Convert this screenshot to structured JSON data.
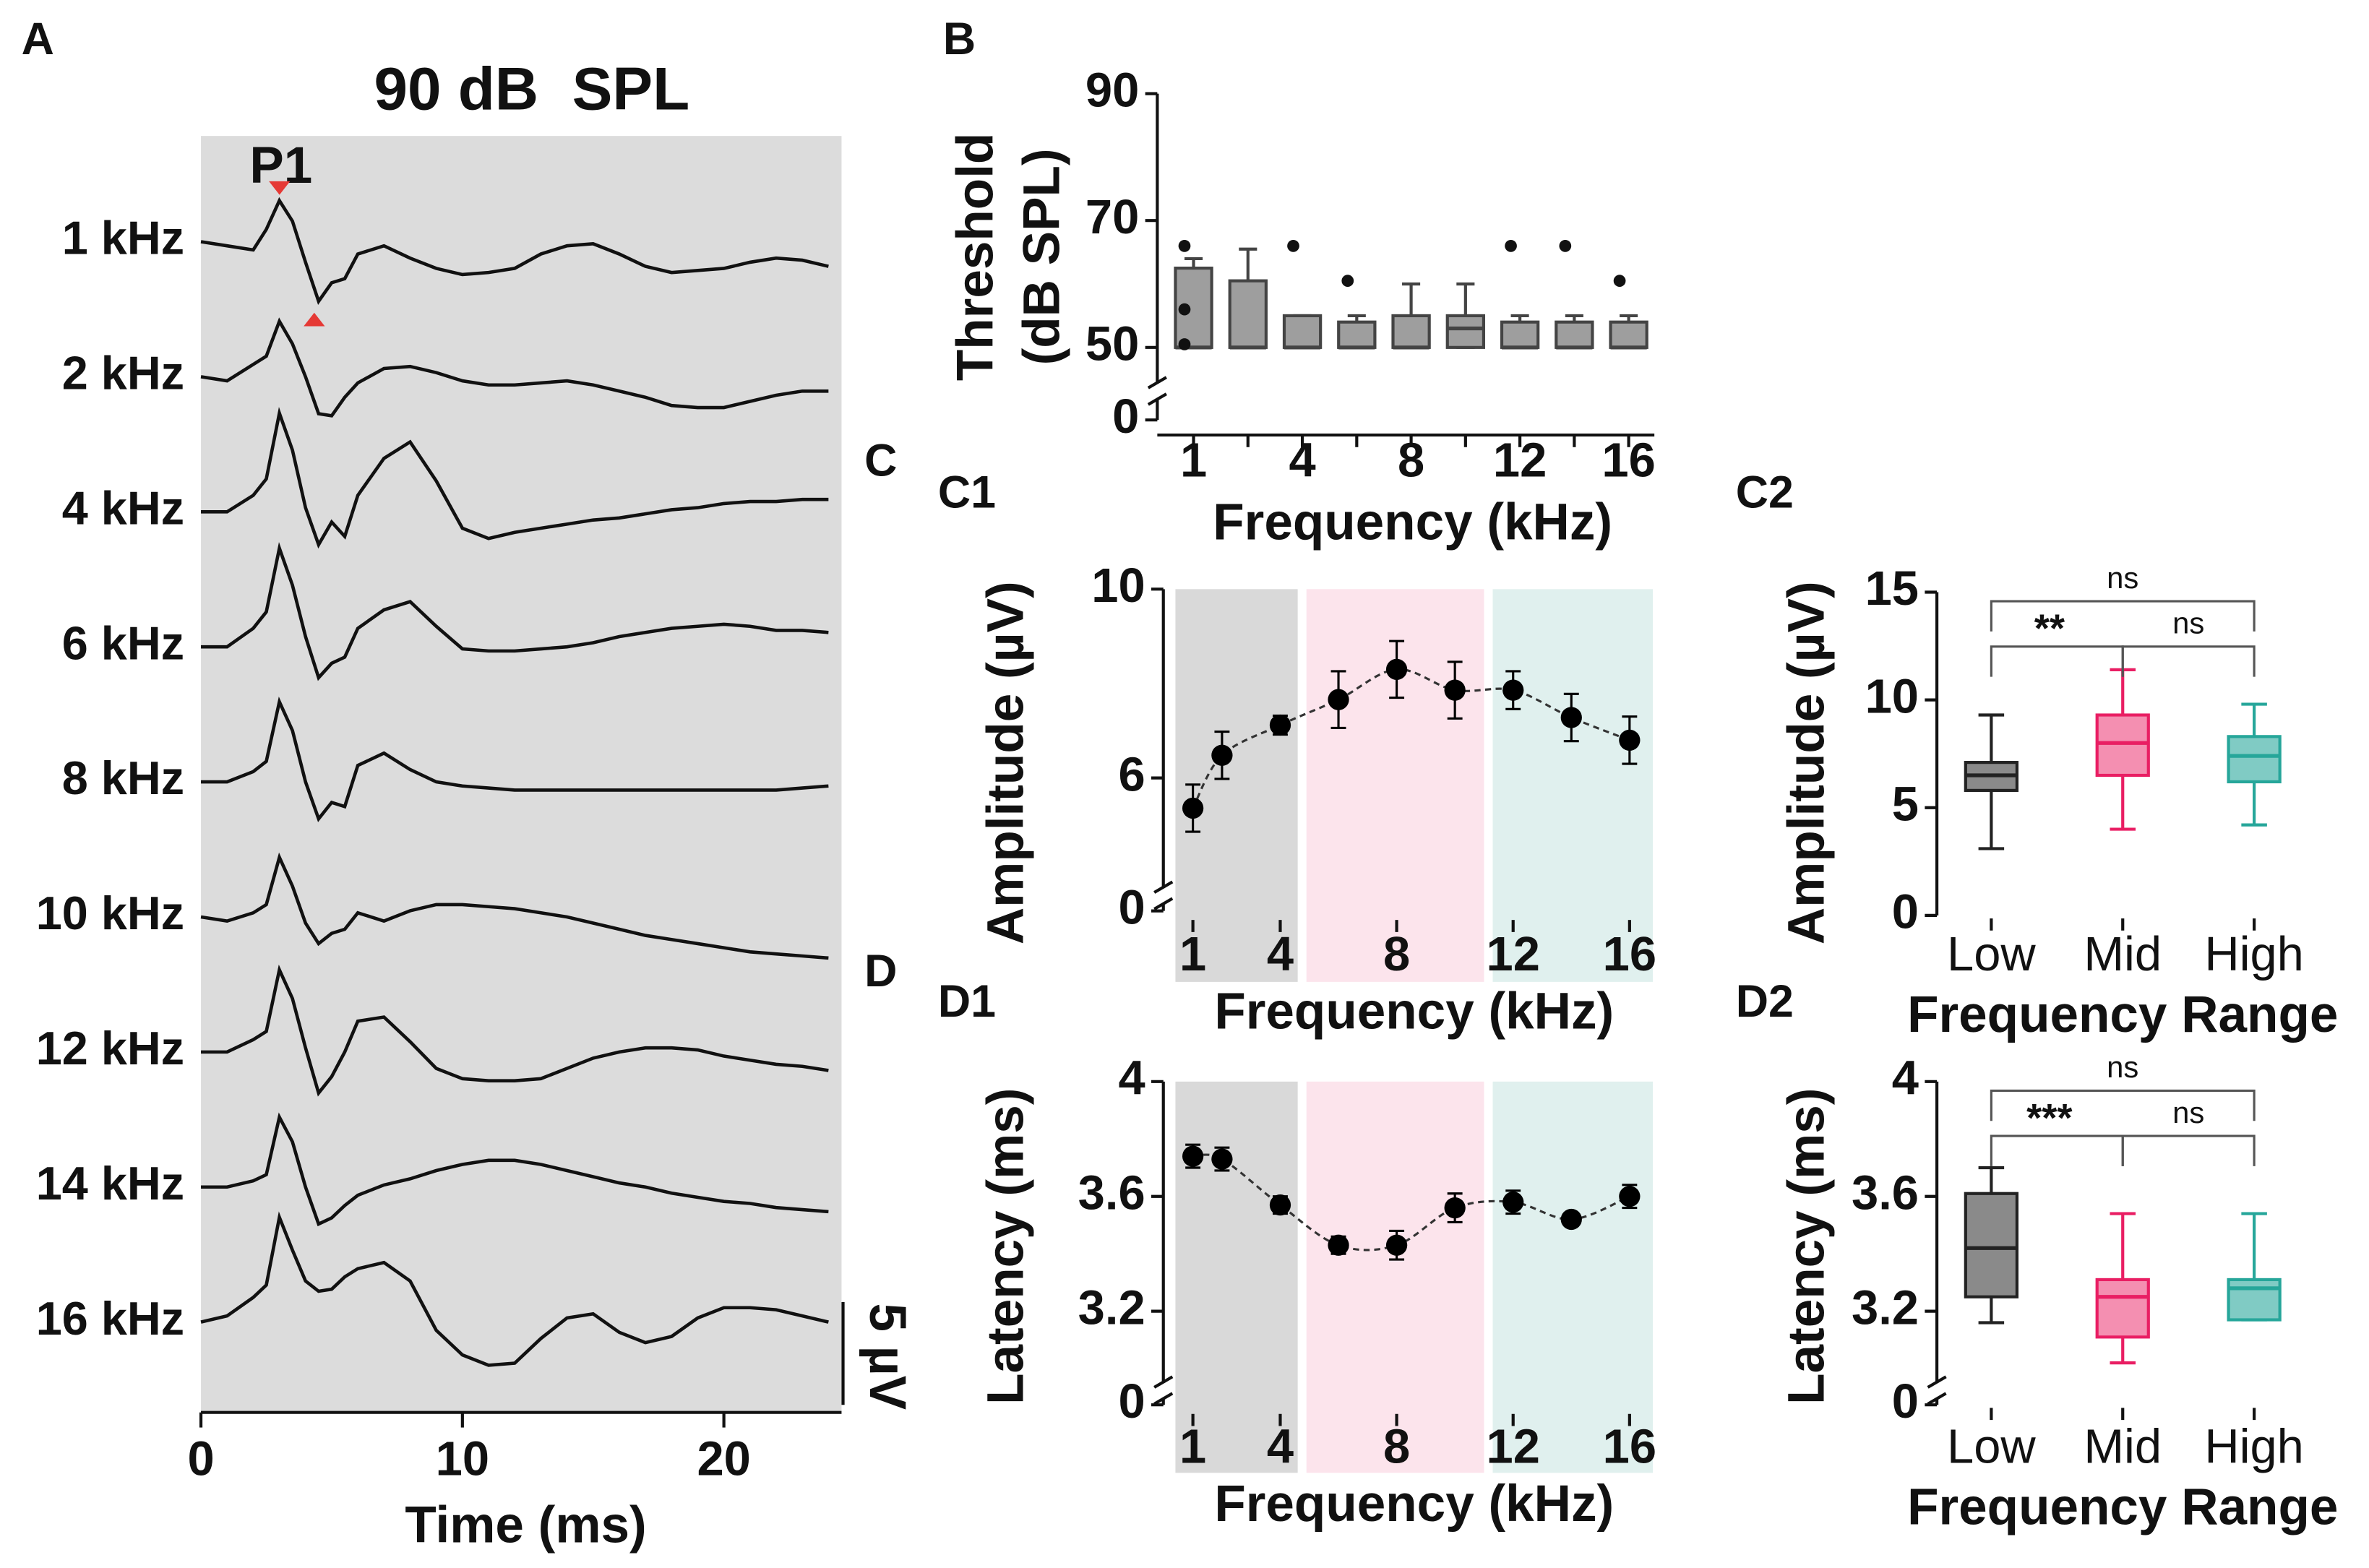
{
  "panel_labels": [
    "A",
    "B",
    "C",
    "C1",
    "C2",
    "D",
    "D1",
    "D2"
  ],
  "chart_data": [
    {
      "type": "line",
      "title": "90 dB  SPL",
      "xlabel": "Time (ms)",
      "xlim": [
        0,
        24.5
      ],
      "xticks": [
        0,
        10,
        20
      ],
      "x": [
        0,
        1,
        2,
        2.5,
        3,
        3.5,
        4,
        4.5,
        5,
        5.5,
        6,
        7,
        8,
        9,
        10,
        11,
        12,
        13,
        14,
        15,
        16,
        17,
        18,
        19,
        20,
        21,
        22,
        23,
        24
      ],
      "color": "#111111",
      "background": "#dcdcdc",
      "marker_color": "#e53935",
      "annotations": [
        "P1",
        "5 µV"
      ],
      "series": [
        {
          "name": "1 kHz",
          "values": [
            0,
            -0.2,
            -0.4,
            0.6,
            2.0,
            1.0,
            -1.0,
            -2.9,
            -2.0,
            -1.8,
            -0.6,
            -0.2,
            -0.8,
            -1.3,
            -1.6,
            -1.5,
            -1.3,
            -0.6,
            -0.2,
            -0.1,
            -0.6,
            -1.2,
            -1.5,
            -1.4,
            -1.3,
            -1.0,
            -0.8,
            -0.9,
            -1.2
          ]
        },
        {
          "name": "2 kHz",
          "values": [
            0,
            -0.2,
            0.6,
            1.0,
            2.7,
            1.6,
            0,
            -1.8,
            -1.9,
            -1.0,
            -0.3,
            0.4,
            0.5,
            0.2,
            -0.2,
            -0.4,
            -0.4,
            -0.3,
            -0.2,
            -0.4,
            -0.7,
            -1.0,
            -1.4,
            -1.5,
            -1.5,
            -1.2,
            -0.9,
            -0.7,
            -0.7
          ]
        },
        {
          "name": "4 kHz",
          "values": [
            0,
            0,
            0.8,
            1.6,
            4.8,
            3.0,
            0.2,
            -1.6,
            -0.5,
            -1.2,
            0.8,
            2.6,
            3.4,
            1.5,
            -0.8,
            -1.3,
            -1.0,
            -0.8,
            -0.6,
            -0.4,
            -0.3,
            -0.1,
            0.1,
            0.2,
            0.4,
            0.5,
            0.5,
            0.6,
            0.6
          ]
        },
        {
          "name": "6 kHz",
          "values": [
            0,
            0,
            0.9,
            1.7,
            4.8,
            3.0,
            0.5,
            -1.5,
            -0.8,
            -0.5,
            0.9,
            1.8,
            2.2,
            1.0,
            -0.1,
            -0.2,
            -0.2,
            -0.1,
            0,
            0.2,
            0.5,
            0.7,
            0.9,
            1.0,
            1.1,
            1.0,
            0.8,
            0.8,
            0.7
          ]
        },
        {
          "name": "8 kHz",
          "values": [
            0,
            0,
            0.5,
            1.0,
            3.9,
            2.5,
            0,
            -1.8,
            -1.0,
            -1.2,
            0.8,
            1.4,
            0.6,
            0,
            -0.2,
            -0.3,
            -0.4,
            -0.4,
            -0.4,
            -0.4,
            -0.4,
            -0.4,
            -0.4,
            -0.4,
            -0.4,
            -0.4,
            -0.4,
            -0.3,
            -0.2
          ]
        },
        {
          "name": "10 kHz",
          "values": [
            0,
            -0.2,
            0.2,
            0.6,
            2.9,
            1.5,
            -0.3,
            -1.3,
            -0.8,
            -0.6,
            0.2,
            -0.2,
            0.3,
            0.6,
            0.6,
            0.5,
            0.4,
            0.2,
            0,
            -0.3,
            -0.6,
            -0.9,
            -1.1,
            -1.3,
            -1.5,
            -1.7,
            -1.8,
            -1.9,
            -2.0
          ]
        },
        {
          "name": "12 kHz",
          "values": [
            0,
            0,
            0.6,
            1.0,
            4.0,
            2.6,
            0.2,
            -2.0,
            -1.2,
            0,
            1.5,
            1.7,
            0.5,
            -0.8,
            -1.3,
            -1.4,
            -1.4,
            -1.3,
            -0.8,
            -0.3,
            0,
            0.2,
            0.2,
            0.1,
            -0.2,
            -0.4,
            -0.6,
            -0.7,
            -0.9
          ]
        },
        {
          "name": "14 kHz",
          "values": [
            0,
            0,
            0.3,
            0.6,
            3.4,
            2.2,
            0,
            -1.8,
            -1.5,
            -0.9,
            -0.4,
            0.1,
            0.4,
            0.8,
            1.1,
            1.3,
            1.3,
            1.1,
            0.8,
            0.5,
            0.2,
            0,
            -0.3,
            -0.5,
            -0.7,
            -0.8,
            -1.0,
            -1.1,
            -1.2
          ]
        },
        {
          "name": "16 kHz",
          "values": [
            0,
            0.3,
            1.2,
            1.8,
            5.1,
            3.5,
            2.0,
            1.5,
            1.6,
            2.2,
            2.6,
            2.9,
            2.0,
            -0.4,
            -1.6,
            -2.1,
            -2.0,
            -0.8,
            0.2,
            0.4,
            -0.5,
            -1.0,
            -0.7,
            0.2,
            0.7,
            0.7,
            0.6,
            0.3,
            0
          ]
        }
      ]
    },
    {
      "type": "box",
      "ylabel": [
        "Threshold",
        "(dB SPL)"
      ],
      "xlabel": "Frequency (kHz)",
      "categories": [
        "1",
        null,
        "4",
        null,
        "8",
        null,
        "12",
        null,
        "16"
      ],
      "ylim": [
        0,
        90
      ],
      "yticks": [
        0,
        50,
        70,
        90
      ],
      "axis_break": [
        0,
        50
      ],
      "whislo": [
        50,
        50,
        50,
        50,
        50,
        50,
        50,
        50,
        50
      ],
      "q1": [
        50,
        50,
        50,
        50,
        50,
        50,
        50,
        50,
        50
      ],
      "median": [
        50,
        50,
        50,
        50,
        50,
        53,
        50,
        50,
        50
      ],
      "q3": [
        62.5,
        60.5,
        55,
        54,
        55,
        55,
        54,
        54,
        54
      ],
      "whishi": [
        64,
        65.5,
        55,
        55,
        60,
        60,
        55,
        55,
        55
      ],
      "outliers": [
        [
          66,
          56,
          50.5
        ],
        [],
        [
          66
        ],
        [
          60.5
        ],
        [],
        [],
        [
          66
        ],
        [
          66
        ],
        [
          60.5
        ]
      ],
      "fill": "#9e9e9e",
      "edge": "#444444"
    },
    {
      "type": "errorline",
      "ylabel": "Amplitude (µV)",
      "xlabel": "Frequency (kHz)",
      "x": [
        1,
        2,
        4,
        6,
        8,
        10,
        12,
        14,
        16
      ],
      "values": [
        5.36,
        6.48,
        7.12,
        7.66,
        8.3,
        7.86,
        7.86,
        7.28,
        6.8
      ],
      "errors": [
        0.5,
        0.5,
        0.2,
        0.6,
        0.6,
        0.6,
        0.4,
        0.5,
        0.5
      ],
      "xlim": [
        0.4,
        16.8
      ],
      "xticks": [
        1,
        4,
        8,
        12,
        16
      ],
      "ylim": [
        0,
        10
      ],
      "yticks": [
        0,
        6,
        10
      ],
      "axis_break": [
        0,
        4
      ],
      "bands": [
        {
          "range": [
            0.4,
            4.6
          ],
          "color": "#d9d9d9"
        },
        {
          "range": [
            4.9,
            11.0
          ],
          "color": "#fce4ec"
        },
        {
          "range": [
            11.3,
            16.8
          ],
          "color": "#e0f0ee"
        }
      ],
      "color": "#000000"
    },
    {
      "type": "box",
      "ylabel": "Amplitude (µV)",
      "xlabel": "Frequency Range",
      "categories": [
        "Low",
        "Mid",
        "High"
      ],
      "ylim": [
        0,
        15
      ],
      "yticks": [
        0,
        5,
        10,
        15
      ],
      "whislo": [
        3.1,
        4.0,
        4.2
      ],
      "q1": [
        5.8,
        6.5,
        6.2
      ],
      "median": [
        6.5,
        8.0,
        7.4
      ],
      "q3": [
        7.1,
        9.3,
        8.3
      ],
      "whishi": [
        9.3,
        11.4,
        9.8
      ],
      "outliers": [
        [],
        [],
        []
      ],
      "fill": [
        "#8a8a8a",
        "#f48fb1",
        "#80cbc4"
      ],
      "edge": [
        "#222222",
        "#e91e63",
        "#26a69a"
      ],
      "comparisons": [
        {
          "pair": [
            0,
            2
          ],
          "label": "ns"
        },
        {
          "pair": [
            0,
            1
          ],
          "label": "**"
        },
        {
          "pair": [
            1,
            2
          ],
          "label": "ns"
        }
      ]
    },
    {
      "type": "errorline",
      "ylabel": "Latency (ms)",
      "xlabel": "Frequency (kHz)",
      "x": [
        1,
        2,
        4,
        6,
        8,
        10,
        12,
        14,
        16
      ],
      "values": [
        3.74,
        3.73,
        3.57,
        3.43,
        3.43,
        3.56,
        3.58,
        3.52,
        3.6
      ],
      "errors": [
        0.04,
        0.04,
        0.03,
        0.03,
        0.05,
        0.05,
        0.04,
        0.02,
        0.04
      ],
      "xlim": [
        0.4,
        16.8
      ],
      "xticks": [
        1,
        4,
        8,
        12,
        16
      ],
      "ylim": [
        0,
        4
      ],
      "yticks": [
        0,
        3.2,
        3.6,
        4
      ],
      "axis_break": [
        0,
        3
      ],
      "bands": [
        {
          "range": [
            0.4,
            4.6
          ],
          "color": "#d9d9d9"
        },
        {
          "range": [
            4.9,
            11.0
          ],
          "color": "#fce4ec"
        },
        {
          "range": [
            11.3,
            16.8
          ],
          "color": "#e0f0ee"
        }
      ],
      "color": "#000000"
    },
    {
      "type": "box",
      "ylabel": "Latency (ms)",
      "xlabel": "Frequency Range",
      "categories": [
        "Low",
        "Mid",
        "High"
      ],
      "ylim": [
        0,
        4
      ],
      "yticks": [
        0,
        3.2,
        3.6,
        4
      ],
      "axis_break": [
        0,
        3
      ],
      "whislo": [
        3.16,
        3.02,
        3.17
      ],
      "q1": [
        3.25,
        3.11,
        3.17
      ],
      "median": [
        3.42,
        3.25,
        3.28
      ],
      "q3": [
        3.61,
        3.31,
        3.31
      ],
      "whishi": [
        3.7,
        3.54,
        3.54
      ],
      "outliers": [
        [],
        [],
        []
      ],
      "fill": [
        "#8a8a8a",
        "#f48fb1",
        "#80cbc4"
      ],
      "edge": [
        "#222222",
        "#e91e63",
        "#26a69a"
      ],
      "comparisons": [
        {
          "pair": [
            0,
            2
          ],
          "label": "ns"
        },
        {
          "pair": [
            0,
            1
          ],
          "label": "***"
        },
        {
          "pair": [
            1,
            2
          ],
          "label": "ns"
        }
      ]
    }
  ]
}
